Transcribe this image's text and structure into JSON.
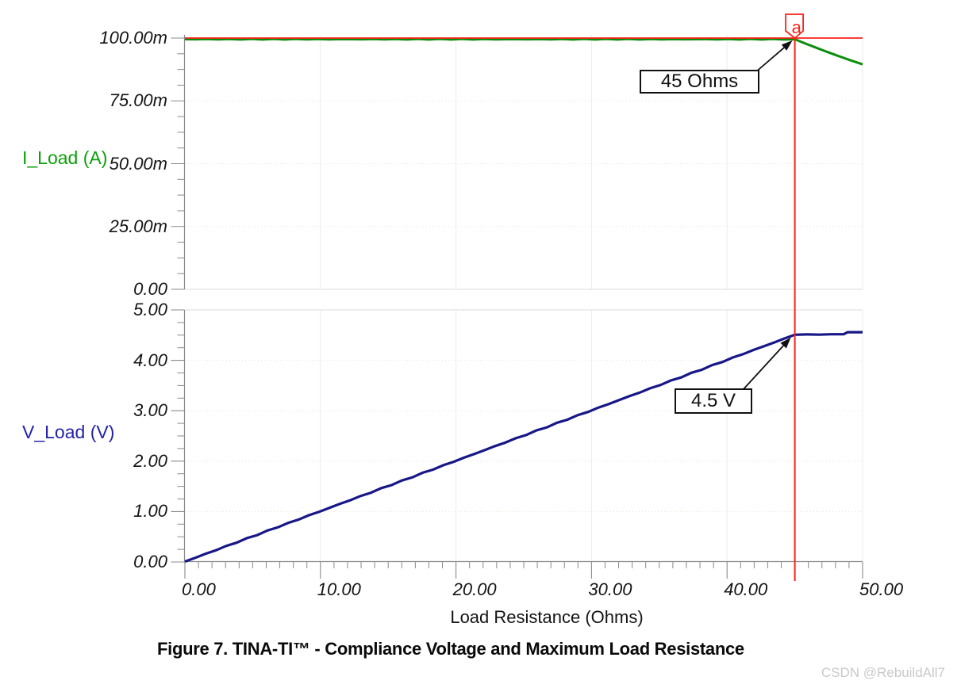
{
  "figure": {
    "caption": "Figure 7.  TINA-TI™ - Compliance Voltage and Maximum Load Resistance",
    "watermark": "CSDN @RebuildAll7"
  },
  "colors": {
    "current_trace": "#0b8e0b",
    "current_label": "#0aa00a",
    "voltage_trace": "#171788",
    "voltage_label": "#2222a8",
    "cursor_red": "#f92318",
    "axis_gray": "#8a8a8a",
    "grid_vertical": "#ececec",
    "grid_horizontal": "#e6e2d8",
    "grid_edge": "#dcdcdc",
    "annotation_black": "#111111",
    "watermark_gray": "#c9c9c9"
  },
  "chart_data": {
    "type": "line",
    "title": "",
    "xlabel": "Load Resistance (Ohms)",
    "xlim": [
      0,
      50
    ],
    "x_minor_step": 1,
    "x_ticks": [
      {
        "v": 0,
        "t": "0.00"
      },
      {
        "v": 10,
        "t": "10.00"
      },
      {
        "v": 20,
        "t": "20.00"
      },
      {
        "v": 30,
        "t": "30.00"
      },
      {
        "v": 40,
        "t": "40.00"
      },
      {
        "v": 50,
        "t": "50.00"
      }
    ],
    "cursor": {
      "marker": "a",
      "x_ohms": 45,
      "y_top_amps": 0.1
    },
    "legend": "none",
    "grid": true,
    "subplots": [
      {
        "ylabel": "I_Load (A)",
        "ylim": [
          0,
          0.1
        ],
        "y_minor_step": 0.00625,
        "y_ticks": [
          {
            "v": 0.0,
            "t": "0.00"
          },
          {
            "v": 0.025,
            "t": "25.00m"
          },
          {
            "v": 0.05,
            "t": "50.00m"
          },
          {
            "v": 0.075,
            "t": "75.00m"
          },
          {
            "v": 0.1,
            "t": "100.00m"
          }
        ],
        "series": {
          "name": "I_Load",
          "points": [
            [
              0,
              0.1
            ],
            [
              45,
              0.1
            ],
            [
              45.5,
              0.0989
            ],
            [
              46,
              0.09783
            ],
            [
              46.5,
              0.09677
            ],
            [
              47,
              0.09574
            ],
            [
              47.5,
              0.09474
            ],
            [
              48,
              0.09375
            ],
            [
              48.5,
              0.09278
            ],
            [
              49,
              0.09184
            ],
            [
              49.5,
              0.09091
            ],
            [
              50,
              0.09
            ]
          ]
        },
        "annotation": {
          "text": "45 Ohms",
          "points_to_x": 45,
          "points_to_y": 0.1
        }
      },
      {
        "ylabel": "V_Load (V)",
        "ylim": [
          0,
          5
        ],
        "y_minor_step": 0.25,
        "y_ticks": [
          {
            "v": 0,
            "t": "0.00"
          },
          {
            "v": 1,
            "t": "1.00"
          },
          {
            "v": 2,
            "t": "2.00"
          },
          {
            "v": 3,
            "t": "3.00"
          },
          {
            "v": 4,
            "t": "4.00"
          },
          {
            "v": 5,
            "t": "5.00"
          }
        ],
        "series": {
          "name": "V_Load",
          "points": [
            [
              0,
              0
            ],
            [
              45,
              4.5
            ],
            [
              48.6,
              4.51
            ],
            [
              48.9,
              4.55
            ],
            [
              50,
              4.55
            ]
          ]
        },
        "annotation": {
          "text": "4.5 V",
          "points_to_x": 45,
          "points_to_y": 4.5
        }
      }
    ]
  }
}
